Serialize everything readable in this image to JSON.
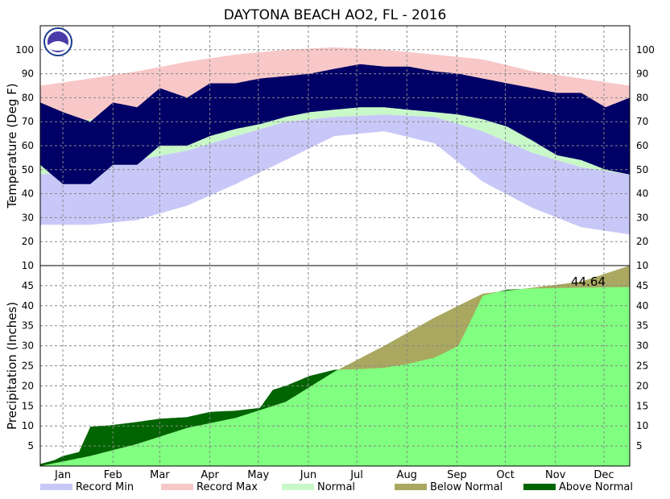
{
  "chart_data": [
    {
      "type": "area",
      "panel": "temperature",
      "title": "DAYTONA BEACH AO2, FL - 2016",
      "ylabel": "Temperature (Deg F)",
      "ylim": [
        10,
        110
      ],
      "yticks": [
        10,
        20,
        30,
        40,
        50,
        60,
        70,
        80,
        90,
        100
      ],
      "months": [
        "Jan",
        "Feb",
        "Mar",
        "Apr",
        "May",
        "Jun",
        "Jul",
        "Aug",
        "Sep",
        "Oct",
        "Nov",
        "Dec"
      ],
      "month_start_day": [
        1,
        32,
        61,
        92,
        122,
        153,
        183,
        214,
        245,
        275,
        306,
        336
      ],
      "days_in_year": 366,
      "normal_high": {
        "x": [
          1,
          32,
          61,
          92,
          122,
          153,
          183,
          214,
          245,
          275,
          306,
          336,
          366
        ],
        "y": [
          69,
          71,
          74,
          79,
          84,
          88,
          90,
          90,
          88,
          83,
          77,
          71,
          69
        ]
      },
      "normal_low": {
        "x": [
          1,
          32,
          61,
          92,
          122,
          153,
          183,
          214,
          245,
          275,
          306,
          336,
          366
        ],
        "y": [
          48,
          50,
          54,
          58,
          64,
          70,
          72,
          73,
          72,
          66,
          57,
          51,
          48
        ]
      },
      "record_max": {
        "x": [
          1,
          32,
          61,
          92,
          122,
          153,
          183,
          214,
          245,
          275,
          306,
          336,
          366
        ],
        "y": [
          85,
          88,
          91,
          95,
          98,
          100,
          101,
          100,
          98,
          96,
          91,
          88,
          85
        ]
      },
      "record_min": {
        "x": [
          1,
          32,
          61,
          92,
          122,
          153,
          183,
          214,
          245,
          275,
          306,
          336,
          366
        ],
        "y": [
          27,
          27,
          29,
          35,
          44,
          54,
          64,
          66,
          61,
          45,
          34,
          26,
          23
        ]
      },
      "observed_high": {
        "x": [
          1,
          15,
          32,
          46,
          61,
          75,
          92,
          106,
          122,
          137,
          153,
          168,
          183,
          199,
          214,
          229,
          245,
          260,
          275,
          290,
          306,
          321,
          336,
          351,
          366
        ],
        "y": [
          78,
          74,
          70,
          78,
          76,
          84,
          80,
          86,
          86,
          88,
          89,
          90,
          92,
          94,
          93,
          93,
          91,
          90,
          88,
          86,
          84,
          82,
          82,
          76,
          80
        ]
      },
      "observed_low": {
        "x": [
          1,
          15,
          32,
          46,
          61,
          75,
          92,
          106,
          122,
          137,
          153,
          168,
          183,
          199,
          214,
          229,
          245,
          260,
          275,
          290,
          306,
          321,
          336,
          351,
          366
        ],
        "y": [
          52,
          44,
          44,
          52,
          52,
          60,
          60,
          64,
          67,
          69,
          72,
          74,
          75,
          76,
          76,
          75,
          74,
          73,
          71,
          68,
          62,
          56,
          54,
          50,
          48
        ]
      }
    },
    {
      "type": "area",
      "panel": "precipitation",
      "ylabel": "Precipitation (Inches)",
      "ylim": [
        0,
        50
      ],
      "yticks": [
        5,
        10,
        15,
        20,
        25,
        30,
        35,
        40,
        45
      ],
      "total_label": "44.64",
      "normal_cumulative": {
        "x": [
          1,
          32,
          61,
          92,
          122,
          153,
          183,
          214,
          245,
          275,
          306,
          336,
          366
        ],
        "y": [
          0,
          2.5,
          5.5,
          9.5,
          12,
          16,
          23.5,
          30,
          37,
          43,
          44.5,
          46,
          50
        ]
      },
      "observed_cumulative": {
        "x": [
          1,
          10,
          15,
          25,
          32,
          45,
          55,
          61,
          75,
          92,
          106,
          122,
          137,
          145,
          153,
          168,
          183,
          199,
          214,
          229,
          245,
          260,
          275,
          290,
          306,
          321,
          336,
          351,
          366
        ],
        "y": [
          0.5,
          1.5,
          2.5,
          3.5,
          9.8,
          10.2,
          10.7,
          11,
          11.8,
          12.2,
          13.5,
          13.8,
          14.5,
          19,
          20,
          22.5,
          24,
          24.2,
          24.5,
          25.5,
          27,
          30,
          42.5,
          44,
          44.3,
          44.4,
          44.5,
          44.6,
          44.64
        ]
      }
    }
  ],
  "legend": [
    {
      "label": "Record Min",
      "color": "#c8c8f8"
    },
    {
      "label": "Record Max",
      "color": "#f8c8c8"
    },
    {
      "label": "Normal",
      "color": "#c8f8c8"
    },
    {
      "label": "Below Normal",
      "color": "#aaa860"
    },
    {
      "label": "Above Normal",
      "color": "#006400"
    }
  ],
  "colors": {
    "observed_temp": "#000066",
    "normal_precip": "#80ff80"
  }
}
